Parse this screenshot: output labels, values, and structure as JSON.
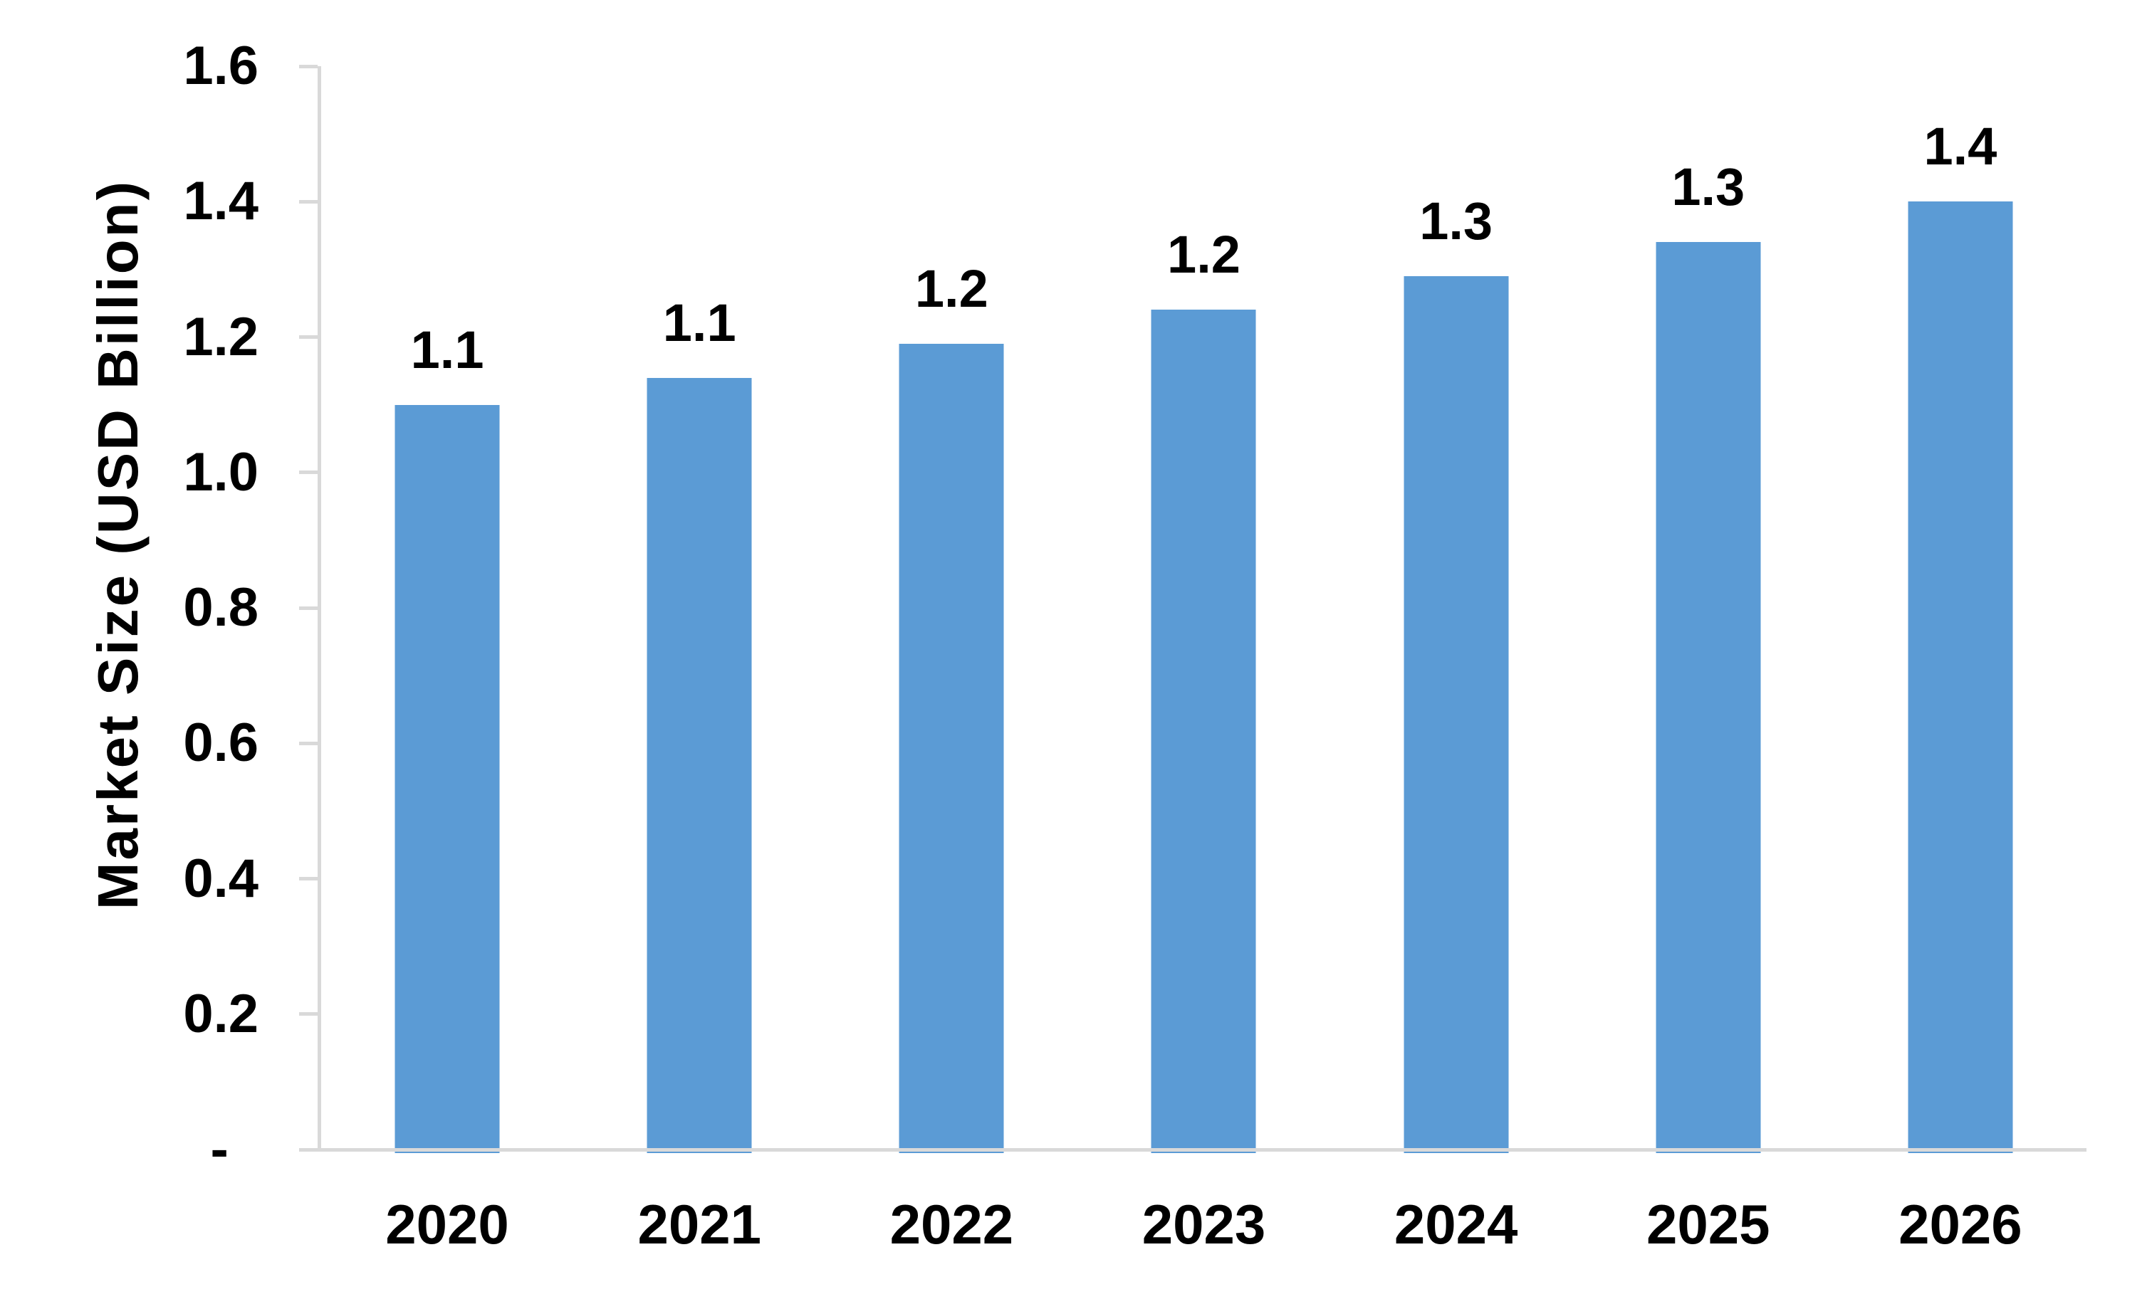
{
  "chart_data": {
    "type": "bar",
    "title": "",
    "xlabel": "",
    "ylabel": "Market Size (USD Billion)",
    "categories": [
      "2020",
      "2021",
      "2022",
      "2023",
      "2024",
      "2025",
      "2026"
    ],
    "series": [
      {
        "name": "Market Size",
        "values": [
          1.1,
          1.14,
          1.19,
          1.24,
          1.29,
          1.34,
          1.4
        ],
        "value_labels": [
          "1.1",
          "1.1",
          "1.2",
          "1.2",
          "1.3",
          "1.3",
          "1.4"
        ]
      }
    ],
    "ylim": [
      0,
      1.6
    ],
    "y_ticks": [
      {
        "label": "1.6",
        "value": 1.6
      },
      {
        "label": "1.4",
        "value": 1.4
      },
      {
        "label": "1.2",
        "value": 1.2
      },
      {
        "label": "1.0",
        "value": 1.0
      },
      {
        "label": "0.8",
        "value": 0.8
      },
      {
        "label": "0.6",
        "value": 0.6
      },
      {
        "label": "0.4",
        "value": 0.4
      },
      {
        "label": "0.2",
        "value": 0.2
      },
      {
        "label": "-  ",
        "value": 0
      }
    ],
    "grid": "off",
    "legend": "none",
    "colors": {
      "bar": "#5B9BD5",
      "axis_line": "#D9D9D9",
      "text": "#000000",
      "background": "#FFFFFF"
    }
  }
}
